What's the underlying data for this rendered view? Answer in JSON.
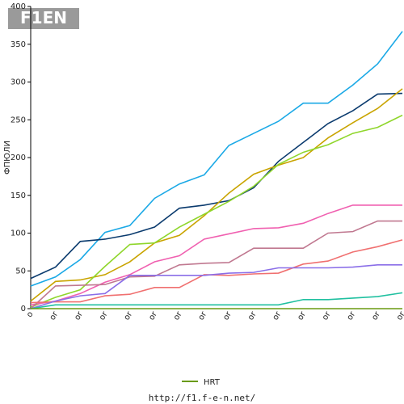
{
  "logo": "F1EN",
  "chart_data": {
    "type": "line",
    "y_label": "ФПЮЛИ",
    "categories": [
      "o",
      "or",
      "or",
      "or",
      "or",
      "or",
      "or",
      "or",
      "or",
      "or",
      "or",
      "or",
      "or",
      "or",
      "or",
      "or"
    ],
    "ylim": [
      0,
      400
    ],
    "yticks": [
      0,
      50,
      100,
      150,
      200,
      250,
      300,
      350,
      400
    ],
    "series": [
      {
        "color": "#1ba9e6",
        "values": [
          30,
          42,
          65,
          101,
          110,
          146,
          165,
          177,
          216,
          232,
          248,
          272,
          272,
          296,
          324,
          367
        ]
      },
      {
        "color": "#0b3b6e",
        "values": [
          40,
          55,
          89,
          92,
          98,
          108,
          133,
          137,
          143,
          160,
          195,
          220,
          245,
          262,
          284,
          285
        ]
      },
      {
        "color": "#c9a400",
        "values": [
          10,
          36,
          38,
          45,
          62,
          87,
          97,
          123,
          153,
          178,
          190,
          200,
          226,
          246,
          265,
          291
        ]
      },
      {
        "color": "#8fd62b",
        "values": [
          2,
          15,
          25,
          56,
          85,
          87,
          108,
          125,
          142,
          162,
          191,
          207,
          217,
          232,
          240,
          256
        ]
      },
      {
        "color": "#f060b0",
        "values": [
          5,
          10,
          20,
          35,
          45,
          62,
          70,
          92,
          99,
          106,
          107,
          113,
          126,
          137,
          137,
          137
        ]
      },
      {
        "color": "#c07890",
        "values": [
          0,
          30,
          31,
          32,
          42,
          43,
          58,
          60,
          61,
          80,
          80,
          80,
          100,
          102,
          116,
          116
        ]
      },
      {
        "color": "#f07070",
        "values": [
          8,
          9,
          9,
          17,
          19,
          28,
          28,
          45,
          44,
          46,
          47,
          59,
          63,
          75,
          82,
          91
        ]
      },
      {
        "color": "#8a6ee8",
        "values": [
          0,
          10,
          17,
          20,
          44,
          44,
          44,
          44,
          47,
          48,
          54,
          54,
          54,
          55,
          58,
          58
        ]
      },
      {
        "color": "#20c0a0",
        "values": [
          0,
          5,
          5,
          5,
          5,
          5,
          5,
          5,
          5,
          5,
          5,
          12,
          12,
          14,
          16,
          21
        ]
      },
      {
        "name": "HRT",
        "color": "#6a9a10",
        "values": [
          0,
          0,
          0,
          0,
          0,
          0,
          0,
          0,
          0,
          0,
          0,
          0,
          0,
          0,
          0,
          0
        ]
      }
    ],
    "footer": "http://f1.f-e-n.net/"
  }
}
